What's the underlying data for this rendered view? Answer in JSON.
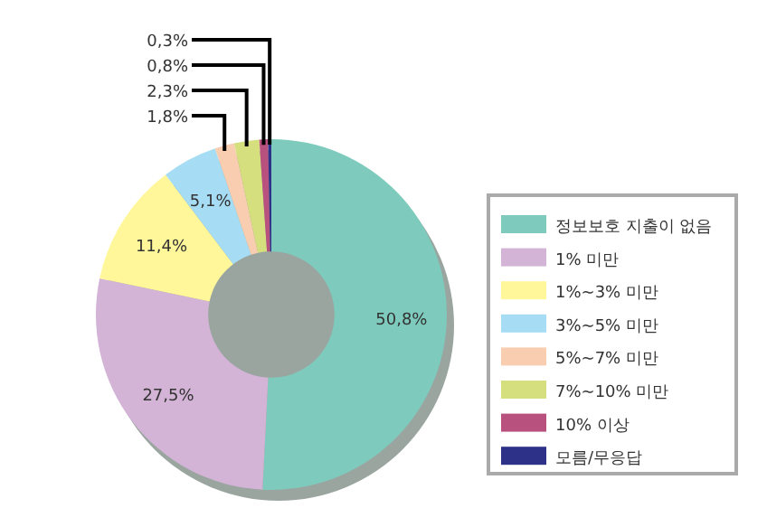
{
  "chart_data": {
    "type": "donut",
    "categories": [
      "정보보호 지출이 없음",
      "1% 미만",
      "1%~3% 미만",
      "3%~5% 미만",
      "5%~7% 미만",
      "7%~10% 미만",
      "10% 이상",
      "모름/무응답"
    ],
    "values": [
      50.8,
      27.5,
      11.4,
      5.1,
      1.8,
      2.3,
      0.8,
      0.3
    ],
    "value_labels": [
      "50,8%",
      "27,5%",
      "11,4%",
      "5,1%",
      "1,8%",
      "2,3%",
      "0,8%",
      "0,3%"
    ],
    "colors": [
      "#7ecbbd",
      "#d3b3d6",
      "#fff799",
      "#a6dcf4",
      "#f8cdb0",
      "#d5df7e",
      "#b9517f",
      "#2e3188"
    ],
    "legend": "right"
  }
}
